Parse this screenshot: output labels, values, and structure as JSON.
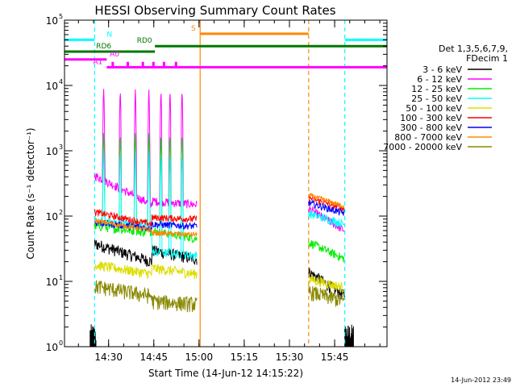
{
  "chart_data": {
    "type": "line",
    "title": "HESSI Observing Summary Count Rates",
    "xlabel": "Start Time (14-Jun-12 14:15:22)",
    "ylabel": "Count Rate (s⁻¹ detector⁻¹)",
    "x_unit": "minutes after 14:15:22",
    "xlim": [
      0,
      107
    ],
    "ylim": [
      1,
      100000
    ],
    "log_y": true,
    "grid": false,
    "x_ticks": [
      {
        "value": 14.63,
        "label": "14:30"
      },
      {
        "value": 29.63,
        "label": "14:45"
      },
      {
        "value": 44.63,
        "label": "15:00"
      },
      {
        "value": 59.63,
        "label": "15:15"
      },
      {
        "value": 74.63,
        "label": "15:30"
      },
      {
        "value": 89.63,
        "label": "15:45"
      }
    ],
    "x_minor_step": 5,
    "y_ticks": [
      {
        "value": 1,
        "base": "10",
        "exp": "0"
      },
      {
        "value": 10,
        "base": "10",
        "exp": "1"
      },
      {
        "value": 100,
        "base": "10",
        "exp": "2"
      },
      {
        "value": 1000,
        "base": "10",
        "exp": "3"
      },
      {
        "value": 10000,
        "base": "10",
        "exp": "4"
      },
      {
        "value": 100000,
        "base": "10",
        "exp": "5"
      }
    ],
    "legend": {
      "placement": "right",
      "header": [
        "Det 1,3,5,6,7,9,",
        "FDecim 1"
      ],
      "entries": [
        {
          "label": "3 - 6 keV",
          "color": "#000000"
        },
        {
          "label": "6 - 12 keV",
          "color": "#ff00ff"
        },
        {
          "label": "12 - 25 keV",
          "color": "#00ee00"
        },
        {
          "label": "25 - 50 keV",
          "color": "#00ffff"
        },
        {
          "label": "50 - 100 keV",
          "color": "#dddd00"
        },
        {
          "label": "100 - 300 keV",
          "color": "#ff0000"
        },
        {
          "label": "300 - 800 keV",
          "color": "#0000ff"
        },
        {
          "label": "800 - 7000 keV",
          "color": "#ff8800"
        },
        {
          "label": "7000 - 20000 keV",
          "color": "#888800"
        }
      ]
    },
    "segments": [
      {
        "t_start": 10.0,
        "t_end": 44.0,
        "t_transition": 29.0
      },
      {
        "t_start": 81.0,
        "t_end": 93.0,
        "t_transition": 81.0
      }
    ],
    "series": [
      {
        "label": "3 - 6 keV",
        "color": "#000000",
        "seg1": {
          "start": 38,
          "end": 20,
          "after": 30,
          "end2": 22
        },
        "seg2": {
          "start": 14,
          "end": 6
        },
        "noise": 0.07,
        "peaks": 0
      },
      {
        "label": "6 - 12 keV",
        "color": "#ff00ff",
        "seg1": {
          "start": 420,
          "end": 150,
          "after": 170,
          "end2": 150
        },
        "seg2": {
          "start": 130,
          "end": 60
        },
        "noise": 0.05,
        "peaks": 8500
      },
      {
        "label": "12 - 25 keV",
        "color": "#00ee00",
        "seg1": {
          "start": 70,
          "end": 55,
          "after": 60,
          "end2": 45
        },
        "seg2": {
          "start": 40,
          "end": 22
        },
        "noise": 0.05,
        "peaks": 1800
      },
      {
        "label": "25 - 50 keV",
        "color": "#00ffff",
        "seg1": {
          "start": 85,
          "end": 70,
          "after": 28,
          "end2": 25
        },
        "seg2": {
          "start": 110,
          "end": 75
        },
        "noise": 0.05,
        "peaks": 900
      },
      {
        "label": "50 - 100 keV",
        "color": "#dddd00",
        "seg1": {
          "start": 18,
          "end": 13,
          "after": 16,
          "end2": 13
        },
        "seg2": {
          "start": 11,
          "end": 8
        },
        "noise": 0.06,
        "peaks": 0
      },
      {
        "label": "100 - 300 keV",
        "color": "#ff0000",
        "seg1": {
          "start": 115,
          "end": 75,
          "after": 95,
          "end2": 90
        },
        "seg2": {
          "start": 190,
          "end": 130
        },
        "noise": 0.04,
        "peaks": 0
      },
      {
        "label": "300 - 800 keV",
        "color": "#0000ff",
        "seg1": {
          "start": 80,
          "end": 65,
          "after": 75,
          "end2": 70
        },
        "seg2": {
          "start": 160,
          "end": 110
        },
        "noise": 0.04,
        "peaks": 0
      },
      {
        "label": "800 - 7000 keV",
        "color": "#ff8800",
        "seg1": {
          "start": 85,
          "end": 60,
          "after": 55,
          "end2": 52
        },
        "seg2": {
          "start": 210,
          "end": 140
        },
        "noise": 0.03,
        "peaks": 0
      },
      {
        "label": "7000 - 20000 keV",
        "color": "#888800",
        "seg1": {
          "start": 8.5,
          "end": 6,
          "after": 5,
          "end2": 4.5
        },
        "seg2": {
          "start": 7,
          "end": 5
        },
        "noise": 0.09,
        "peaks": 0
      }
    ],
    "flare_peaks": [
      13,
      18.5,
      23.5,
      28,
      32,
      35,
      39
    ],
    "flags": [
      {
        "label": "N",
        "color": "#00ffff",
        "level": 50000,
        "label_x": 14,
        "ranges": [
          [
            0,
            10
          ],
          [
            93,
            107
          ]
        ],
        "vlines": [
          10,
          93
        ],
        "vline_dash": true
      },
      {
        "label": "RD0",
        "color": "#007700",
        "level": 40000,
        "label_x": 24,
        "ranges": [
          [
            30,
            107
          ]
        ]
      },
      {
        "label": "RD6",
        "color": "#007700",
        "level": 33000,
        "label_x": 10.5,
        "ranges": [
          [
            0,
            30
          ]
        ]
      },
      {
        "label": "S",
        "color": "#ff8800",
        "level": 62000,
        "label_x": 42,
        "ranges": [
          [
            45,
            81
          ]
        ],
        "vlines": [
          45,
          81
        ],
        "vline_dash_second": true
      },
      {
        "label": "A0",
        "color": "#ff00ff",
        "level": 25000,
        "label_x": 15,
        "ranges": [
          [
            0,
            14
          ]
        ]
      },
      {
        "label": "A1",
        "color": "#ff00ff",
        "level": 19000,
        "label_x": 9.5,
        "ranges": [
          [
            14,
            107
          ]
        ]
      }
    ],
    "attenuator_ticks": [
      16,
      21,
      26,
      29.5,
      33,
      37
    ],
    "low_data_start": 8.5,
    "low_data_end": 10.5,
    "low_data2_start": 93,
    "low_data2_end": 96
  },
  "timestamp": "14-Jun-2012 23:49"
}
